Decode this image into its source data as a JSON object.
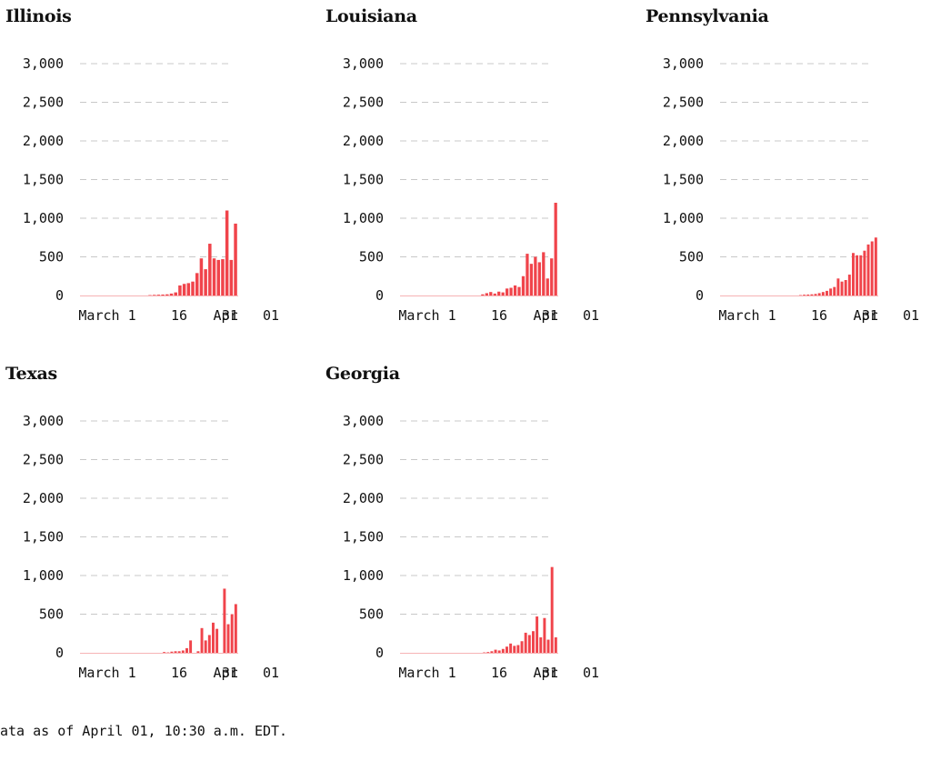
{
  "footnote": "ata as of April 01, 10:30 a.m. EDT.",
  "colors": {
    "bar": "#f0444b",
    "grid": "#c8c8c8",
    "text": "#111111"
  },
  "chart_data": [
    {
      "type": "bar",
      "title": "Illinois",
      "ylim": [
        0,
        3000
      ],
      "yticks": [
        "0",
        "500",
        "1,000",
        "1,500",
        "2,000",
        "2,500",
        "3,000"
      ],
      "xticks": [
        "March 1",
        "16",
        "Apr",
        "31",
        "01"
      ],
      "x_start": "2020-02-28",
      "x_end": "2020-04-01",
      "values": [
        0,
        0,
        0,
        0,
        0,
        0,
        0,
        0,
        0,
        0,
        0,
        0,
        0,
        0,
        0,
        0,
        5,
        8,
        10,
        12,
        15,
        25,
        40,
        130,
        150,
        160,
        180,
        290,
        480,
        340,
        670,
        480,
        460,
        470,
        1100,
        460,
        930
      ]
    },
    {
      "type": "bar",
      "title": "Louisiana",
      "ylim": [
        0,
        3000
      ],
      "yticks": [
        "0",
        "500",
        "1,000",
        "1,500",
        "2,000",
        "2,500",
        "3,000"
      ],
      "xticks": [
        "March 1",
        "16",
        "Apr",
        "31",
        "01"
      ],
      "x_start": "2020-02-28",
      "x_end": "2020-04-01",
      "values": [
        0,
        0,
        0,
        0,
        0,
        0,
        0,
        0,
        0,
        0,
        0,
        0,
        0,
        0,
        0,
        0,
        0,
        0,
        0,
        0,
        15,
        30,
        45,
        25,
        50,
        40,
        90,
        100,
        130,
        110,
        250,
        540,
        410,
        500,
        430,
        560,
        220,
        480,
        1200
      ]
    },
    {
      "type": "bar",
      "title": "Pennsylvania",
      "ylim": [
        0,
        3000
      ],
      "yticks": [
        "0",
        "500",
        "1,000",
        "1,500",
        "2,000",
        "2,500",
        "3,000"
      ],
      "xticks": [
        "March 1",
        "16",
        "Apr",
        "31",
        "01"
      ],
      "x_start": "2020-02-28",
      "x_end": "2020-04-01",
      "values": [
        0,
        0,
        0,
        0,
        0,
        0,
        0,
        0,
        0,
        0,
        0,
        0,
        0,
        0,
        0,
        0,
        0,
        0,
        0,
        0,
        0,
        5,
        10,
        12,
        15,
        20,
        30,
        45,
        60,
        90,
        110,
        220,
        180,
        200,
        270,
        550,
        520,
        520,
        580,
        660,
        700,
        750
      ]
    },
    {
      "type": "bar",
      "title": "Texas",
      "ylim": [
        0,
        3000
      ],
      "yticks": [
        "0",
        "500",
        "1,000",
        "1,500",
        "2,000",
        "2,500",
        "3,000"
      ],
      "xticks": [
        "March 1",
        "16",
        "Apr",
        "31",
        "01"
      ],
      "x_start": "2020-02-28",
      "x_end": "2020-04-01",
      "values": [
        0,
        0,
        0,
        0,
        0,
        0,
        0,
        0,
        0,
        0,
        0,
        0,
        0,
        0,
        0,
        0,
        0,
        0,
        0,
        0,
        0,
        0,
        10,
        5,
        15,
        20,
        20,
        30,
        60,
        160,
        0,
        20,
        320,
        160,
        230,
        390,
        310,
        0,
        830,
        370,
        500,
        630
      ]
    },
    {
      "type": "bar",
      "title": "Georgia",
      "ylim": [
        0,
        3000
      ],
      "yticks": [
        "0",
        "500",
        "1,000",
        "1,500",
        "2,000",
        "2,500",
        "3,000"
      ],
      "xticks": [
        "March 1",
        "16",
        "Apr",
        "31",
        "01"
      ],
      "x_start": "2020-02-28",
      "x_end": "2020-04-01",
      "values": [
        0,
        0,
        0,
        0,
        0,
        0,
        0,
        0,
        0,
        0,
        0,
        0,
        0,
        0,
        0,
        0,
        0,
        0,
        0,
        0,
        0,
        0,
        5,
        10,
        20,
        40,
        30,
        50,
        80,
        120,
        90,
        100,
        150,
        260,
        230,
        280,
        470,
        200,
        450,
        170,
        1110,
        200
      ]
    }
  ]
}
